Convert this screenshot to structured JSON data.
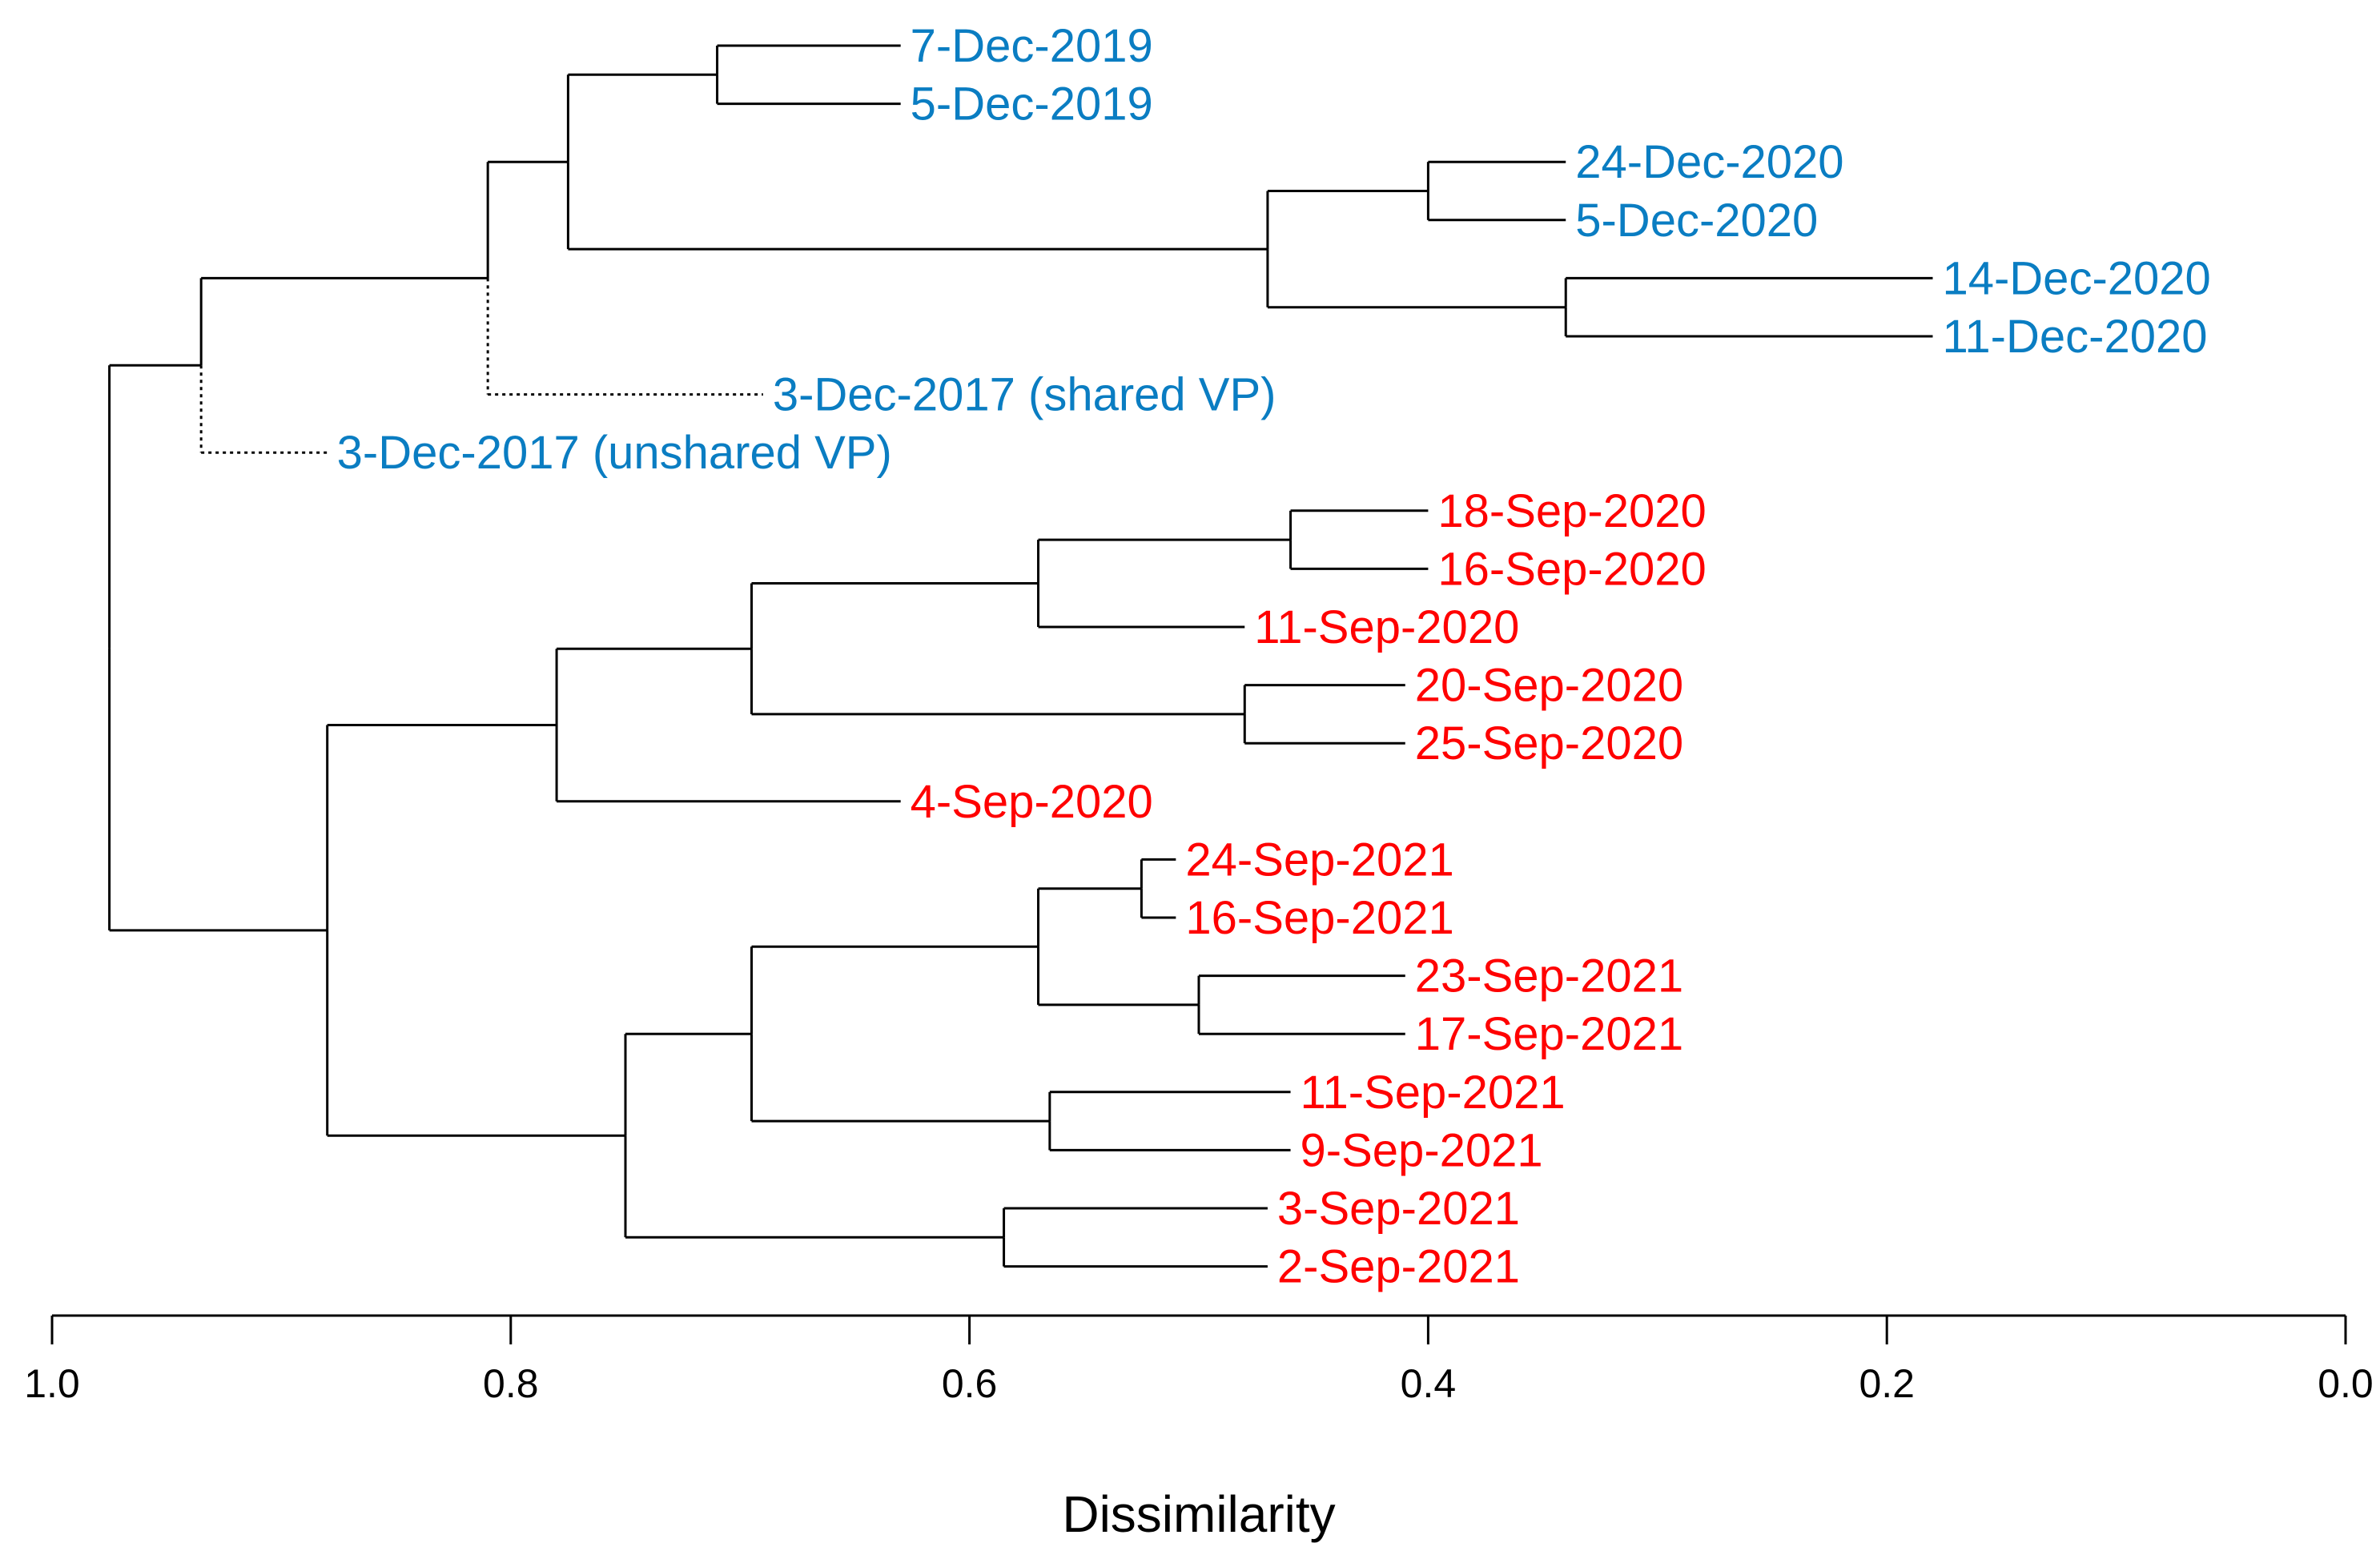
{
  "chart_data": {
    "type": "dendrogram",
    "xlabel": "Dissimilarity",
    "xlim": [
      1.0,
      0.0
    ],
    "ticks": [
      1.0,
      0.8,
      0.6,
      0.4,
      0.2,
      0.0
    ],
    "tick_labels": [
      "1.0",
      "0.8",
      "0.6",
      "0.4",
      "0.2",
      "0.0"
    ],
    "colors": {
      "december": "#0a7dc2",
      "september": "#ff0000",
      "branch": "#000000"
    },
    "leaves": [
      {
        "label": "7-Dec-2019",
        "group": "december"
      },
      {
        "label": "5-Dec-2019",
        "group": "december"
      },
      {
        "label": "24-Dec-2020",
        "group": "december"
      },
      {
        "label": "5-Dec-2020",
        "group": "december"
      },
      {
        "label": "14-Dec-2020",
        "group": "december"
      },
      {
        "label": "11-Dec-2020",
        "group": "december"
      },
      {
        "label": "3-Dec-2017 (shared VP)",
        "group": "december"
      },
      {
        "label": "3-Dec-2017 (unshared VP)",
        "group": "december"
      },
      {
        "label": "18-Sep-2020",
        "group": "september"
      },
      {
        "label": "16-Sep-2020",
        "group": "september"
      },
      {
        "label": "11-Sep-2020",
        "group": "september"
      },
      {
        "label": "20-Sep-2020",
        "group": "september"
      },
      {
        "label": "25-Sep-2020",
        "group": "september"
      },
      {
        "label": "4-Sep-2020",
        "group": "september"
      },
      {
        "label": "24-Sep-2021",
        "group": "september"
      },
      {
        "label": "16-Sep-2021",
        "group": "september"
      },
      {
        "label": "23-Sep-2021",
        "group": "september"
      },
      {
        "label": "17-Sep-2021",
        "group": "september"
      },
      {
        "label": "11-Sep-2021",
        "group": "september"
      },
      {
        "label": "9-Sep-2021",
        "group": "september"
      },
      {
        "label": "3-Sep-2021",
        "group": "september"
      },
      {
        "label": "2-Sep-2021",
        "group": "september"
      }
    ],
    "merges": [
      {
        "id": "m1",
        "children": [
          0,
          1
        ],
        "height": 0.71
      },
      {
        "id": "m2",
        "children": [
          2,
          3
        ],
        "height": 0.4
      },
      {
        "id": "m3",
        "children": [
          4,
          5
        ],
        "height": 0.34
      },
      {
        "id": "m4",
        "children": [
          "m2",
          "m3"
        ],
        "height": 0.47
      },
      {
        "id": "m5",
        "children": [
          "m1",
          "m4"
        ],
        "height": 0.775
      },
      {
        "id": "m6",
        "children": [
          "m5",
          6
        ],
        "height": 0.81,
        "dotted_child": 6
      },
      {
        "id": "m7",
        "children": [
          "m6",
          7
        ],
        "height": 0.935,
        "dotted_child": 7
      },
      {
        "id": "m8",
        "children": [
          8,
          9
        ],
        "height": 0.46
      },
      {
        "id": "m9",
        "children": [
          "m8",
          10
        ],
        "height": 0.57
      },
      {
        "id": "m10",
        "children": [
          11,
          12
        ],
        "height": 0.48
      },
      {
        "id": "m11",
        "children": [
          "m9",
          "m10"
        ],
        "height": 0.695
      },
      {
        "id": "m12",
        "children": [
          "m11",
          13
        ],
        "height": 0.78
      },
      {
        "id": "m13",
        "children": [
          14,
          15
        ],
        "height": 0.525
      },
      {
        "id": "m14",
        "children": [
          16,
          17
        ],
        "height": 0.5
      },
      {
        "id": "m15",
        "children": [
          "m13",
          "m14"
        ],
        "height": 0.57
      },
      {
        "id": "m16",
        "children": [
          18,
          19
        ],
        "height": 0.565
      },
      {
        "id": "m17",
        "children": [
          "m15",
          "m16"
        ],
        "height": 0.695
      },
      {
        "id": "m18",
        "children": [
          20,
          21
        ],
        "height": 0.585
      },
      {
        "id": "m19",
        "children": [
          "m17",
          "m18"
        ],
        "height": 0.75
      },
      {
        "id": "m20",
        "children": [
          "m12",
          "m19"
        ],
        "height": 0.88
      },
      {
        "id": "m21",
        "children": [
          "m7",
          "m20"
        ],
        "height": 0.975
      }
    ],
    "leaf_heights": [
      0.63,
      0.63,
      0.34,
      0.34,
      0.18,
      0.18,
      0.69,
      0.88,
      0.4,
      0.4,
      0.48,
      0.41,
      0.41,
      0.63,
      0.51,
      0.51,
      0.41,
      0.41,
      0.46,
      0.46,
      0.47,
      0.47
    ]
  }
}
